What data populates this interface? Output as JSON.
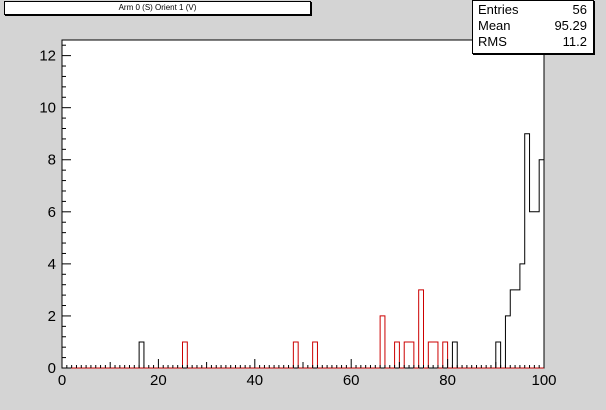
{
  "chart_data": {
    "type": "histogram",
    "title": "Arm 0 (S) Orient 1 (V)",
    "stats": [
      {
        "label": "Entries",
        "value": "56"
      },
      {
        "label": "Mean",
        "value": "95.29"
      },
      {
        "label": "RMS",
        "value": "11.2"
      }
    ],
    "xlim": [
      0,
      100
    ],
    "ylim": [
      0,
      12.6
    ],
    "x_ticks": [
      0,
      20,
      40,
      60,
      80,
      100
    ],
    "y_ticks": [
      0,
      2,
      4,
      6,
      8,
      10,
      12
    ],
    "bin_width": 1,
    "series": [
      {
        "color": "#000000",
        "bins": [
          [
            16,
            1
          ],
          [
            81,
            1
          ],
          [
            90,
            1
          ],
          [
            92,
            2
          ],
          [
            93,
            3
          ],
          [
            94,
            3
          ],
          [
            95,
            4
          ],
          [
            96,
            9
          ],
          [
            97,
            6
          ],
          [
            98,
            6
          ],
          [
            99,
            8
          ],
          [
            100,
            12
          ]
        ]
      },
      {
        "color": "#cc0000",
        "bins": [
          [
            25,
            1
          ],
          [
            48,
            1
          ],
          [
            52,
            1
          ],
          [
            66,
            2
          ],
          [
            69,
            1
          ],
          [
            71,
            1
          ],
          [
            72,
            1
          ],
          [
            74,
            3
          ],
          [
            76,
            1
          ],
          [
            77,
            1
          ],
          [
            79,
            1
          ]
        ]
      }
    ]
  },
  "colors": {
    "frame_bg": "#d4d4d4",
    "plot_bg": "#ffffff",
    "axis": "#000000"
  }
}
